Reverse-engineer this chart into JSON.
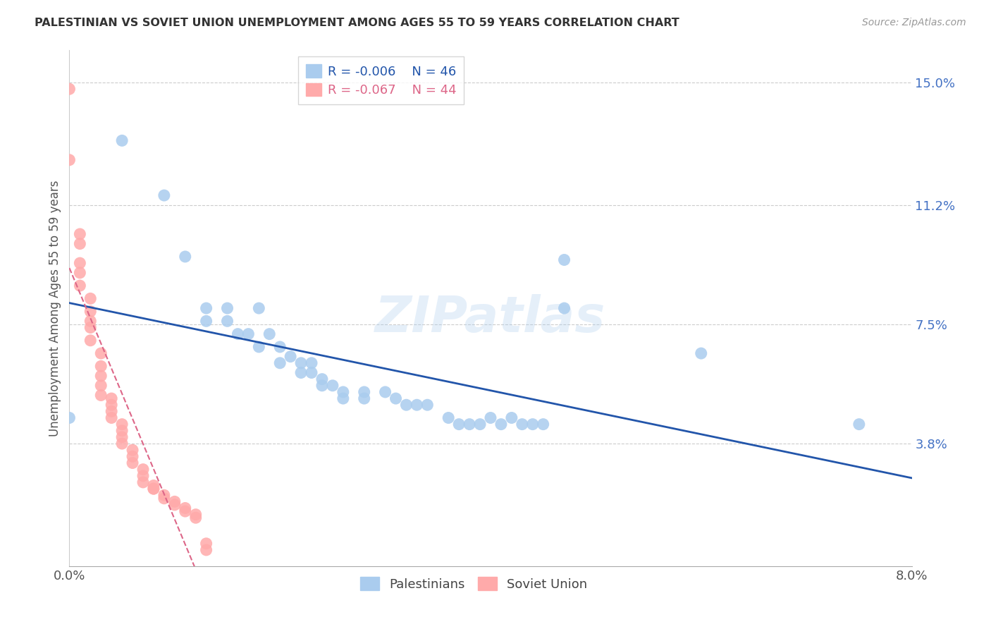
{
  "title": "PALESTINIAN VS SOVIET UNION UNEMPLOYMENT AMONG AGES 55 TO 59 YEARS CORRELATION CHART",
  "source": "Source: ZipAtlas.com",
  "ylabel": "Unemployment Among Ages 55 to 59 years",
  "xlim": [
    0.0,
    0.08
  ],
  "ylim": [
    0.0,
    0.16
  ],
  "xtick_values": [
    0.0,
    0.01,
    0.02,
    0.03,
    0.04,
    0.05,
    0.06,
    0.07,
    0.08
  ],
  "ytick_labels_right": [
    "3.8%",
    "7.5%",
    "11.2%",
    "15.0%"
  ],
  "ytick_values_right": [
    0.038,
    0.075,
    0.112,
    0.15
  ],
  "legend_blue_r": "R = -0.006",
  "legend_blue_n": "N = 46",
  "legend_pink_r": "R = -0.067",
  "legend_pink_n": "N = 44",
  "legend_label_blue": "Palestinians",
  "legend_label_pink": "Soviet Union",
  "blue_color": "#aaccee",
  "pink_color": "#ffaaaa",
  "trend_blue_color": "#2255aa",
  "trend_pink_color": "#dd6688",
  "blue_scatter": [
    [
      0.0,
      0.046
    ],
    [
      0.005,
      0.132
    ],
    [
      0.009,
      0.115
    ],
    [
      0.011,
      0.096
    ],
    [
      0.013,
      0.08
    ],
    [
      0.013,
      0.076
    ],
    [
      0.015,
      0.08
    ],
    [
      0.015,
      0.076
    ],
    [
      0.016,
      0.072
    ],
    [
      0.017,
      0.072
    ],
    [
      0.018,
      0.08
    ],
    [
      0.018,
      0.068
    ],
    [
      0.019,
      0.072
    ],
    [
      0.02,
      0.068
    ],
    [
      0.02,
      0.063
    ],
    [
      0.021,
      0.065
    ],
    [
      0.022,
      0.063
    ],
    [
      0.022,
      0.06
    ],
    [
      0.023,
      0.063
    ],
    [
      0.023,
      0.06
    ],
    [
      0.024,
      0.058
    ],
    [
      0.024,
      0.056
    ],
    [
      0.025,
      0.056
    ],
    [
      0.026,
      0.054
    ],
    [
      0.026,
      0.052
    ],
    [
      0.028,
      0.054
    ],
    [
      0.028,
      0.052
    ],
    [
      0.03,
      0.054
    ],
    [
      0.031,
      0.052
    ],
    [
      0.032,
      0.05
    ],
    [
      0.033,
      0.05
    ],
    [
      0.034,
      0.05
    ],
    [
      0.036,
      0.046
    ],
    [
      0.037,
      0.044
    ],
    [
      0.038,
      0.044
    ],
    [
      0.039,
      0.044
    ],
    [
      0.04,
      0.046
    ],
    [
      0.041,
      0.044
    ],
    [
      0.042,
      0.046
    ],
    [
      0.043,
      0.044
    ],
    [
      0.044,
      0.044
    ],
    [
      0.045,
      0.044
    ],
    [
      0.047,
      0.095
    ],
    [
      0.047,
      0.08
    ],
    [
      0.06,
      0.066
    ],
    [
      0.075,
      0.044
    ]
  ],
  "pink_scatter": [
    [
      0.0,
      0.148
    ],
    [
      0.0,
      0.126
    ],
    [
      0.001,
      0.103
    ],
    [
      0.001,
      0.1
    ],
    [
      0.001,
      0.094
    ],
    [
      0.001,
      0.091
    ],
    [
      0.001,
      0.087
    ],
    [
      0.002,
      0.083
    ],
    [
      0.002,
      0.079
    ],
    [
      0.002,
      0.076
    ],
    [
      0.002,
      0.074
    ],
    [
      0.002,
      0.07
    ],
    [
      0.003,
      0.066
    ],
    [
      0.003,
      0.062
    ],
    [
      0.003,
      0.059
    ],
    [
      0.003,
      0.056
    ],
    [
      0.003,
      0.053
    ],
    [
      0.004,
      0.052
    ],
    [
      0.004,
      0.05
    ],
    [
      0.004,
      0.048
    ],
    [
      0.004,
      0.046
    ],
    [
      0.005,
      0.044
    ],
    [
      0.005,
      0.042
    ],
    [
      0.005,
      0.04
    ],
    [
      0.005,
      0.038
    ],
    [
      0.006,
      0.036
    ],
    [
      0.006,
      0.034
    ],
    [
      0.006,
      0.032
    ],
    [
      0.007,
      0.03
    ],
    [
      0.007,
      0.028
    ],
    [
      0.007,
      0.026
    ],
    [
      0.008,
      0.025
    ],
    [
      0.008,
      0.024
    ],
    [
      0.008,
      0.024
    ],
    [
      0.009,
      0.022
    ],
    [
      0.009,
      0.021
    ],
    [
      0.01,
      0.02
    ],
    [
      0.01,
      0.019
    ],
    [
      0.011,
      0.018
    ],
    [
      0.011,
      0.017
    ],
    [
      0.012,
      0.016
    ],
    [
      0.012,
      0.015
    ],
    [
      0.013,
      0.007
    ],
    [
      0.013,
      0.005
    ]
  ],
  "watermark_text": "ZIPatlas",
  "background_color": "#ffffff",
  "grid_color": "#cccccc"
}
